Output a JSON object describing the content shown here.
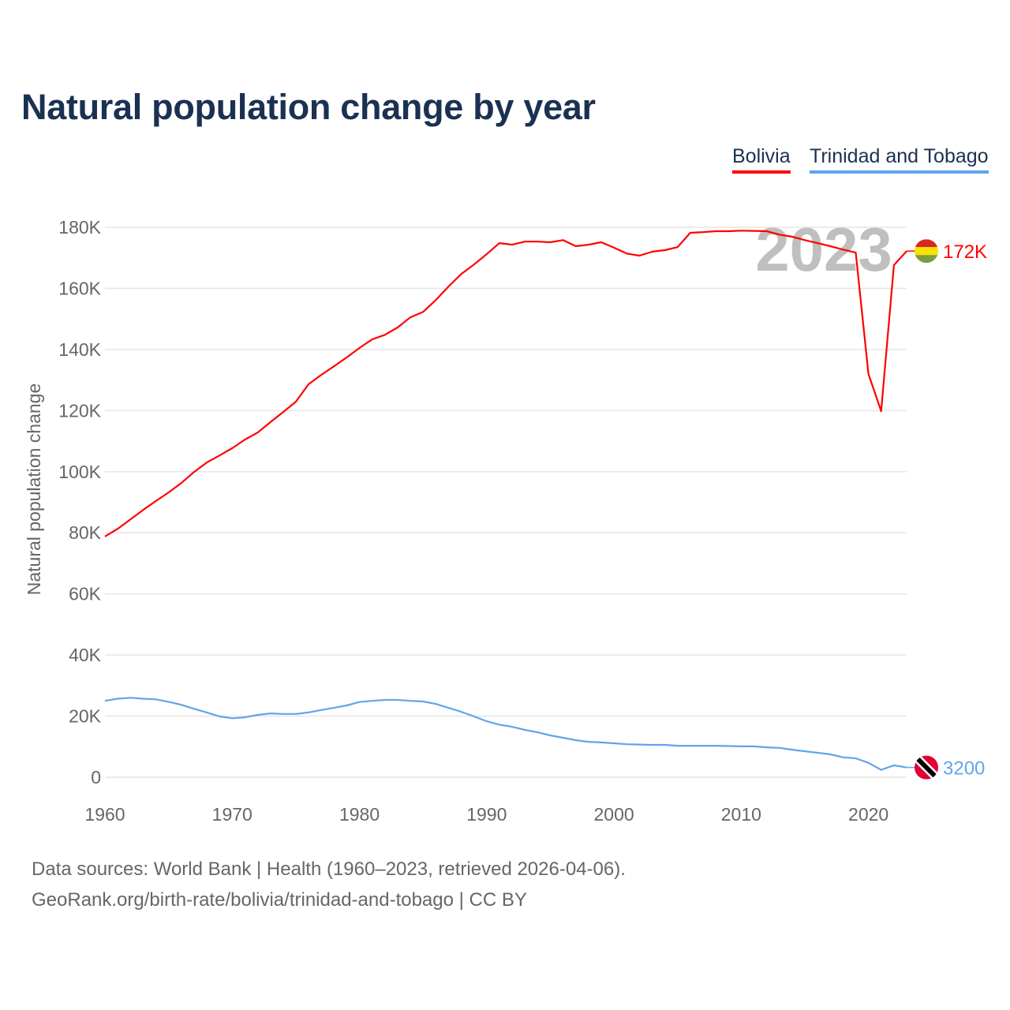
{
  "title": "Natural population change by year",
  "footer": {
    "line1": "Data sources: World Bank | Health (1960–2023, retrieved 2026-04-06).",
    "line2": "GeoRank.org/birth-rate/bolivia/trinidad-and-tobago | CC BY"
  },
  "chart_data": {
    "type": "line",
    "title": "Natural population change by year",
    "xlabel": "",
    "ylabel": "Natural population change",
    "xlim": [
      1960,
      2023
    ],
    "ylim": [
      0,
      180000
    ],
    "x_ticks": [
      "1960",
      "1970",
      "1980",
      "1990",
      "2000",
      "2010",
      "2020"
    ],
    "y_ticks": [
      "0",
      "20K",
      "40K",
      "60K",
      "80K",
      "100K",
      "120K",
      "140K",
      "160K",
      "180K"
    ],
    "year_watermark": "2023",
    "legend_placement": "top-right",
    "grid": true,
    "x": [
      1960,
      1961,
      1962,
      1963,
      1964,
      1965,
      1966,
      1967,
      1968,
      1969,
      1970,
      1971,
      1972,
      1973,
      1974,
      1975,
      1976,
      1977,
      1978,
      1979,
      1980,
      1981,
      1982,
      1983,
      1984,
      1985,
      1986,
      1987,
      1988,
      1989,
      1990,
      1991,
      1992,
      1993,
      1994,
      1995,
      1996,
      1997,
      1998,
      1999,
      2000,
      2001,
      2002,
      2003,
      2004,
      2005,
      2006,
      2007,
      2008,
      2009,
      2010,
      2011,
      2012,
      2013,
      2014,
      2015,
      2016,
      2017,
      2018,
      2019,
      2020,
      2021,
      2022,
      2023
    ],
    "series": [
      {
        "name": "Bolivia",
        "color": "#ff0000",
        "end_label": "172K",
        "flag": "bolivia-flag",
        "values": [
          78800,
          81300,
          84400,
          87500,
          90400,
          93200,
          96300,
          99900,
          103000,
          105300,
          107700,
          110500,
          112800,
          116200,
          119500,
          122900,
          128600,
          131700,
          134500,
          137400,
          140500,
          143300,
          144800,
          147200,
          150500,
          152300,
          156200,
          160600,
          164700,
          167800,
          171200,
          174800,
          174300,
          175300,
          175300,
          175100,
          175800,
          173800,
          174300,
          175100,
          173300,
          171400,
          170700,
          172000,
          172500,
          173500,
          178200,
          178400,
          178700,
          178700,
          178900,
          178800,
          178700,
          177600,
          176900,
          175800,
          174800,
          173800,
          172700,
          171700,
          132000,
          119800,
          167600,
          172200
        ]
      },
      {
        "name": "Trinidad and Tobago",
        "color": "#60a5ea",
        "end_label": "3200",
        "flag": "trinidad-and-tobago-flag",
        "values": [
          25000,
          25700,
          26000,
          25700,
          25500,
          24700,
          23700,
          22400,
          21200,
          19900,
          19300,
          19600,
          20400,
          20900,
          20700,
          20700,
          21200,
          22000,
          22700,
          23500,
          24600,
          25000,
          25300,
          25300,
          25000,
          24800,
          24000,
          22700,
          21400,
          19900,
          18300,
          17200,
          16500,
          15500,
          14700,
          13700,
          12900,
          12100,
          11600,
          11400,
          11100,
          10800,
          10700,
          10600,
          10600,
          10300,
          10300,
          10300,
          10300,
          10200,
          10100,
          10100,
          9800,
          9600,
          9000,
          8500,
          8000,
          7500,
          6500,
          6200,
          4700,
          2400,
          3900,
          3200
        ]
      }
    ]
  }
}
